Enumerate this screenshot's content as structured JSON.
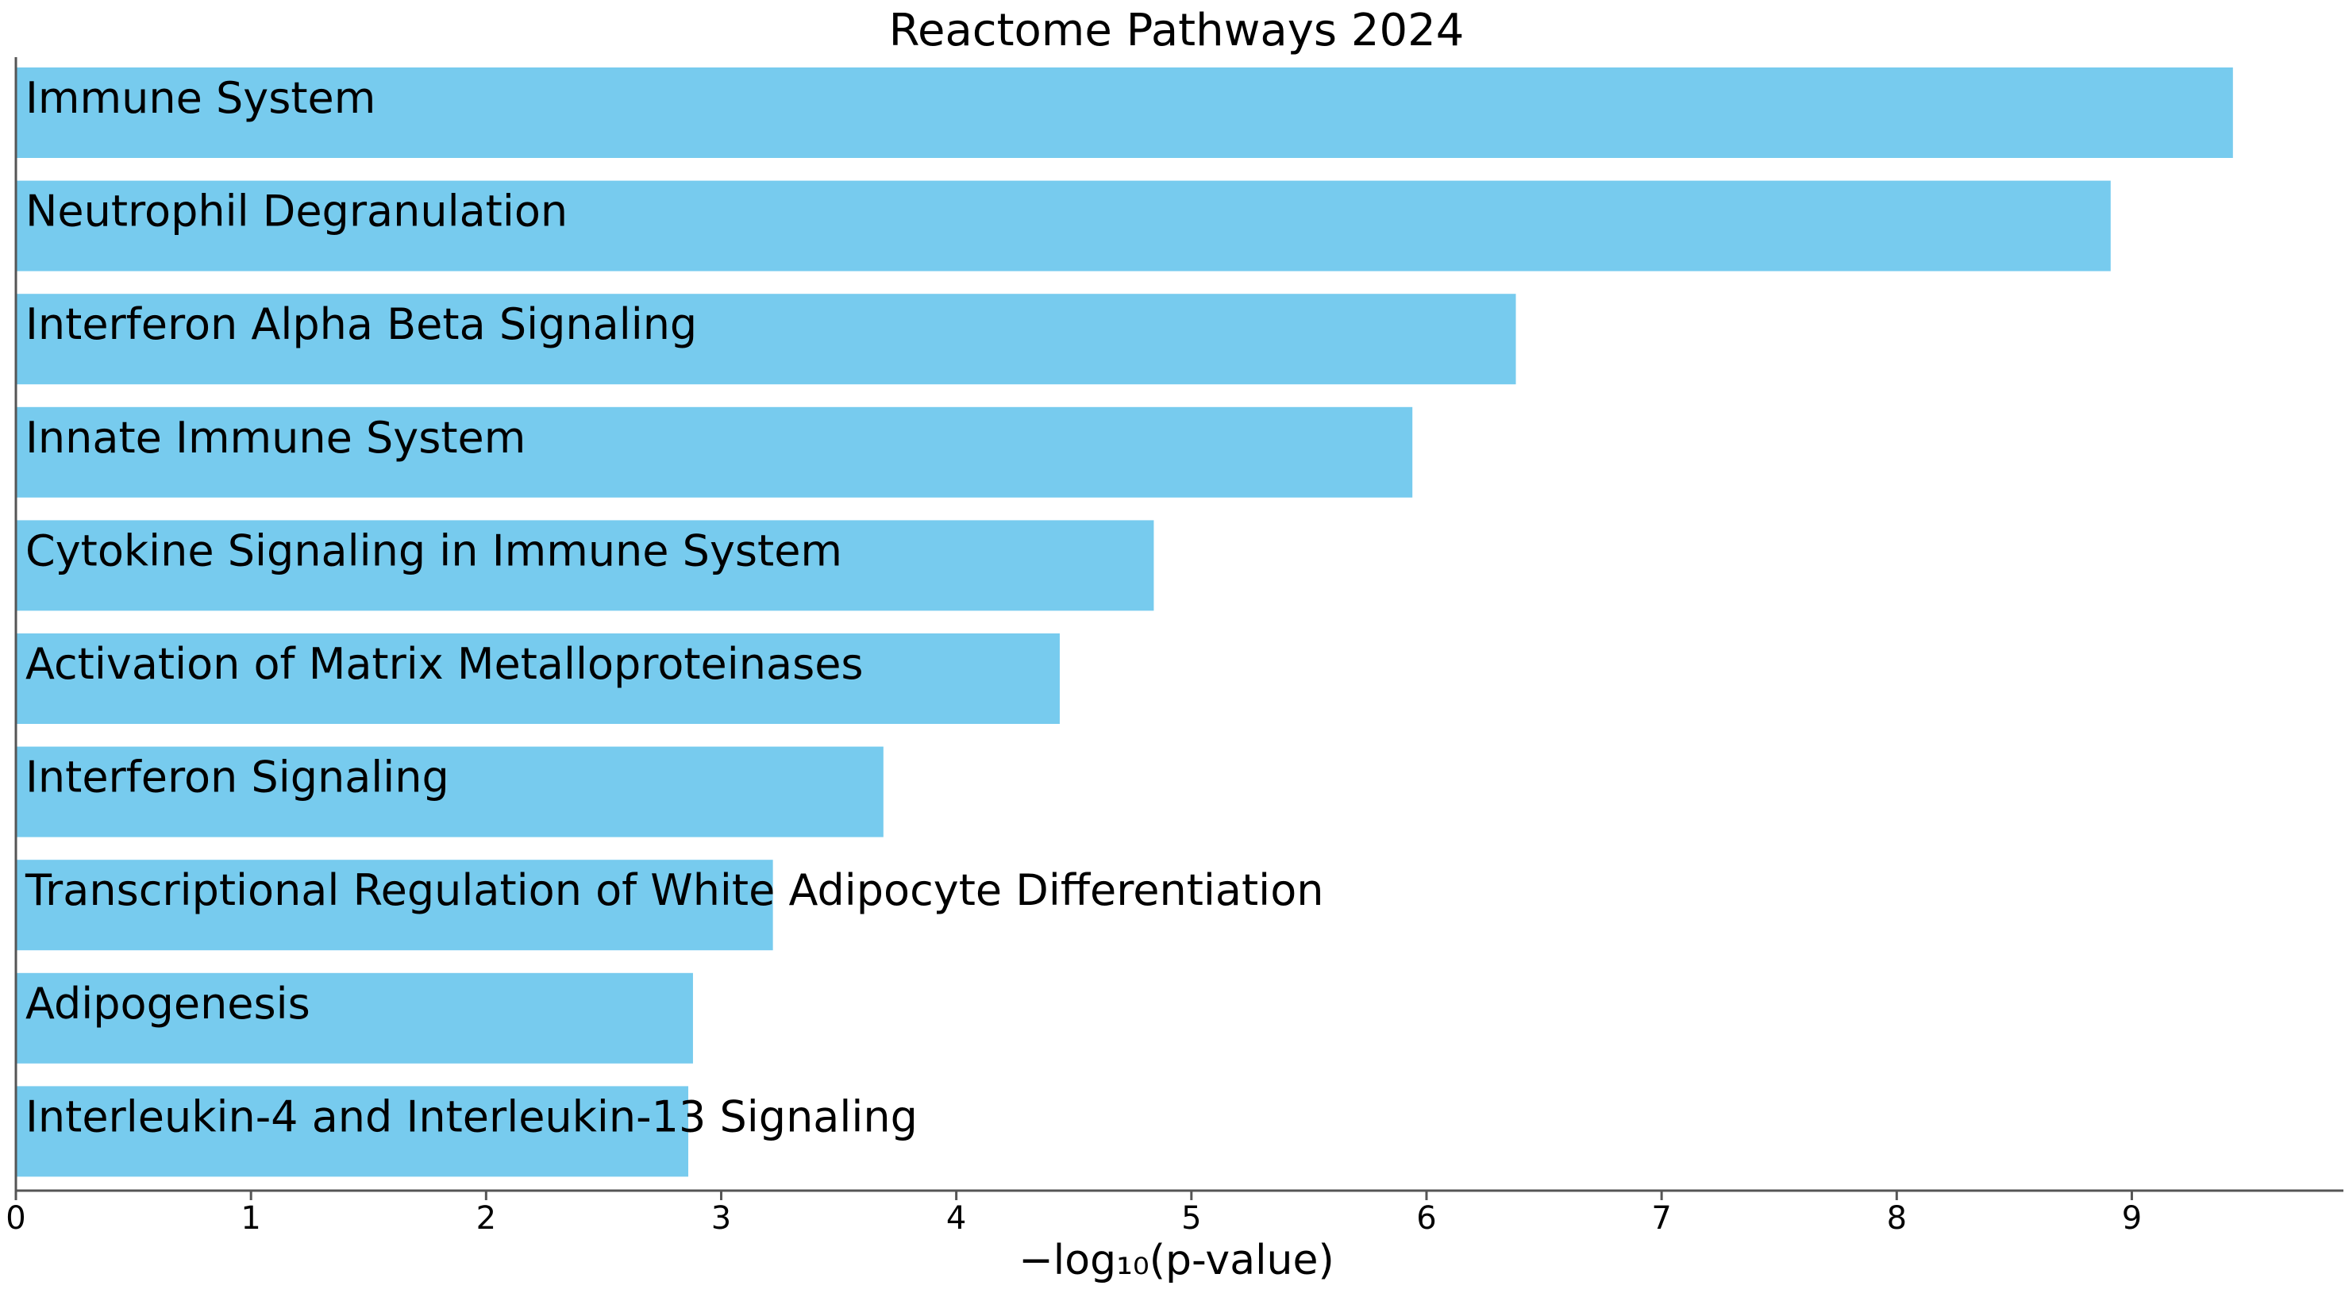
{
  "chart_data": {
    "type": "bar",
    "orientation": "horizontal",
    "title": "Reactome Pathways 2024",
    "xlabel": "−log₁₀(p-value)",
    "ylabel": "",
    "xlim": [
      0,
      9.9
    ],
    "xticks": [
      0,
      1,
      2,
      3,
      4,
      5,
      6,
      7,
      8,
      9
    ],
    "grid": false,
    "bar_color": "#77cbee",
    "categories": [
      "Immune System",
      "Neutrophil Degranulation",
      "Interferon Alpha Beta Signaling",
      "Innate Immune System",
      "Cytokine Signaling in Immune System",
      "Activation of Matrix Metalloproteinases",
      "Interferon Signaling",
      "Transcriptional Regulation of White Adipocyte Differentiation",
      "Adipogenesis",
      "Interleukin-4 and Interleukin-13 Signaling"
    ],
    "values": [
      9.43,
      8.91,
      6.38,
      5.94,
      4.84,
      4.44,
      3.69,
      3.22,
      2.88,
      2.86
    ]
  }
}
